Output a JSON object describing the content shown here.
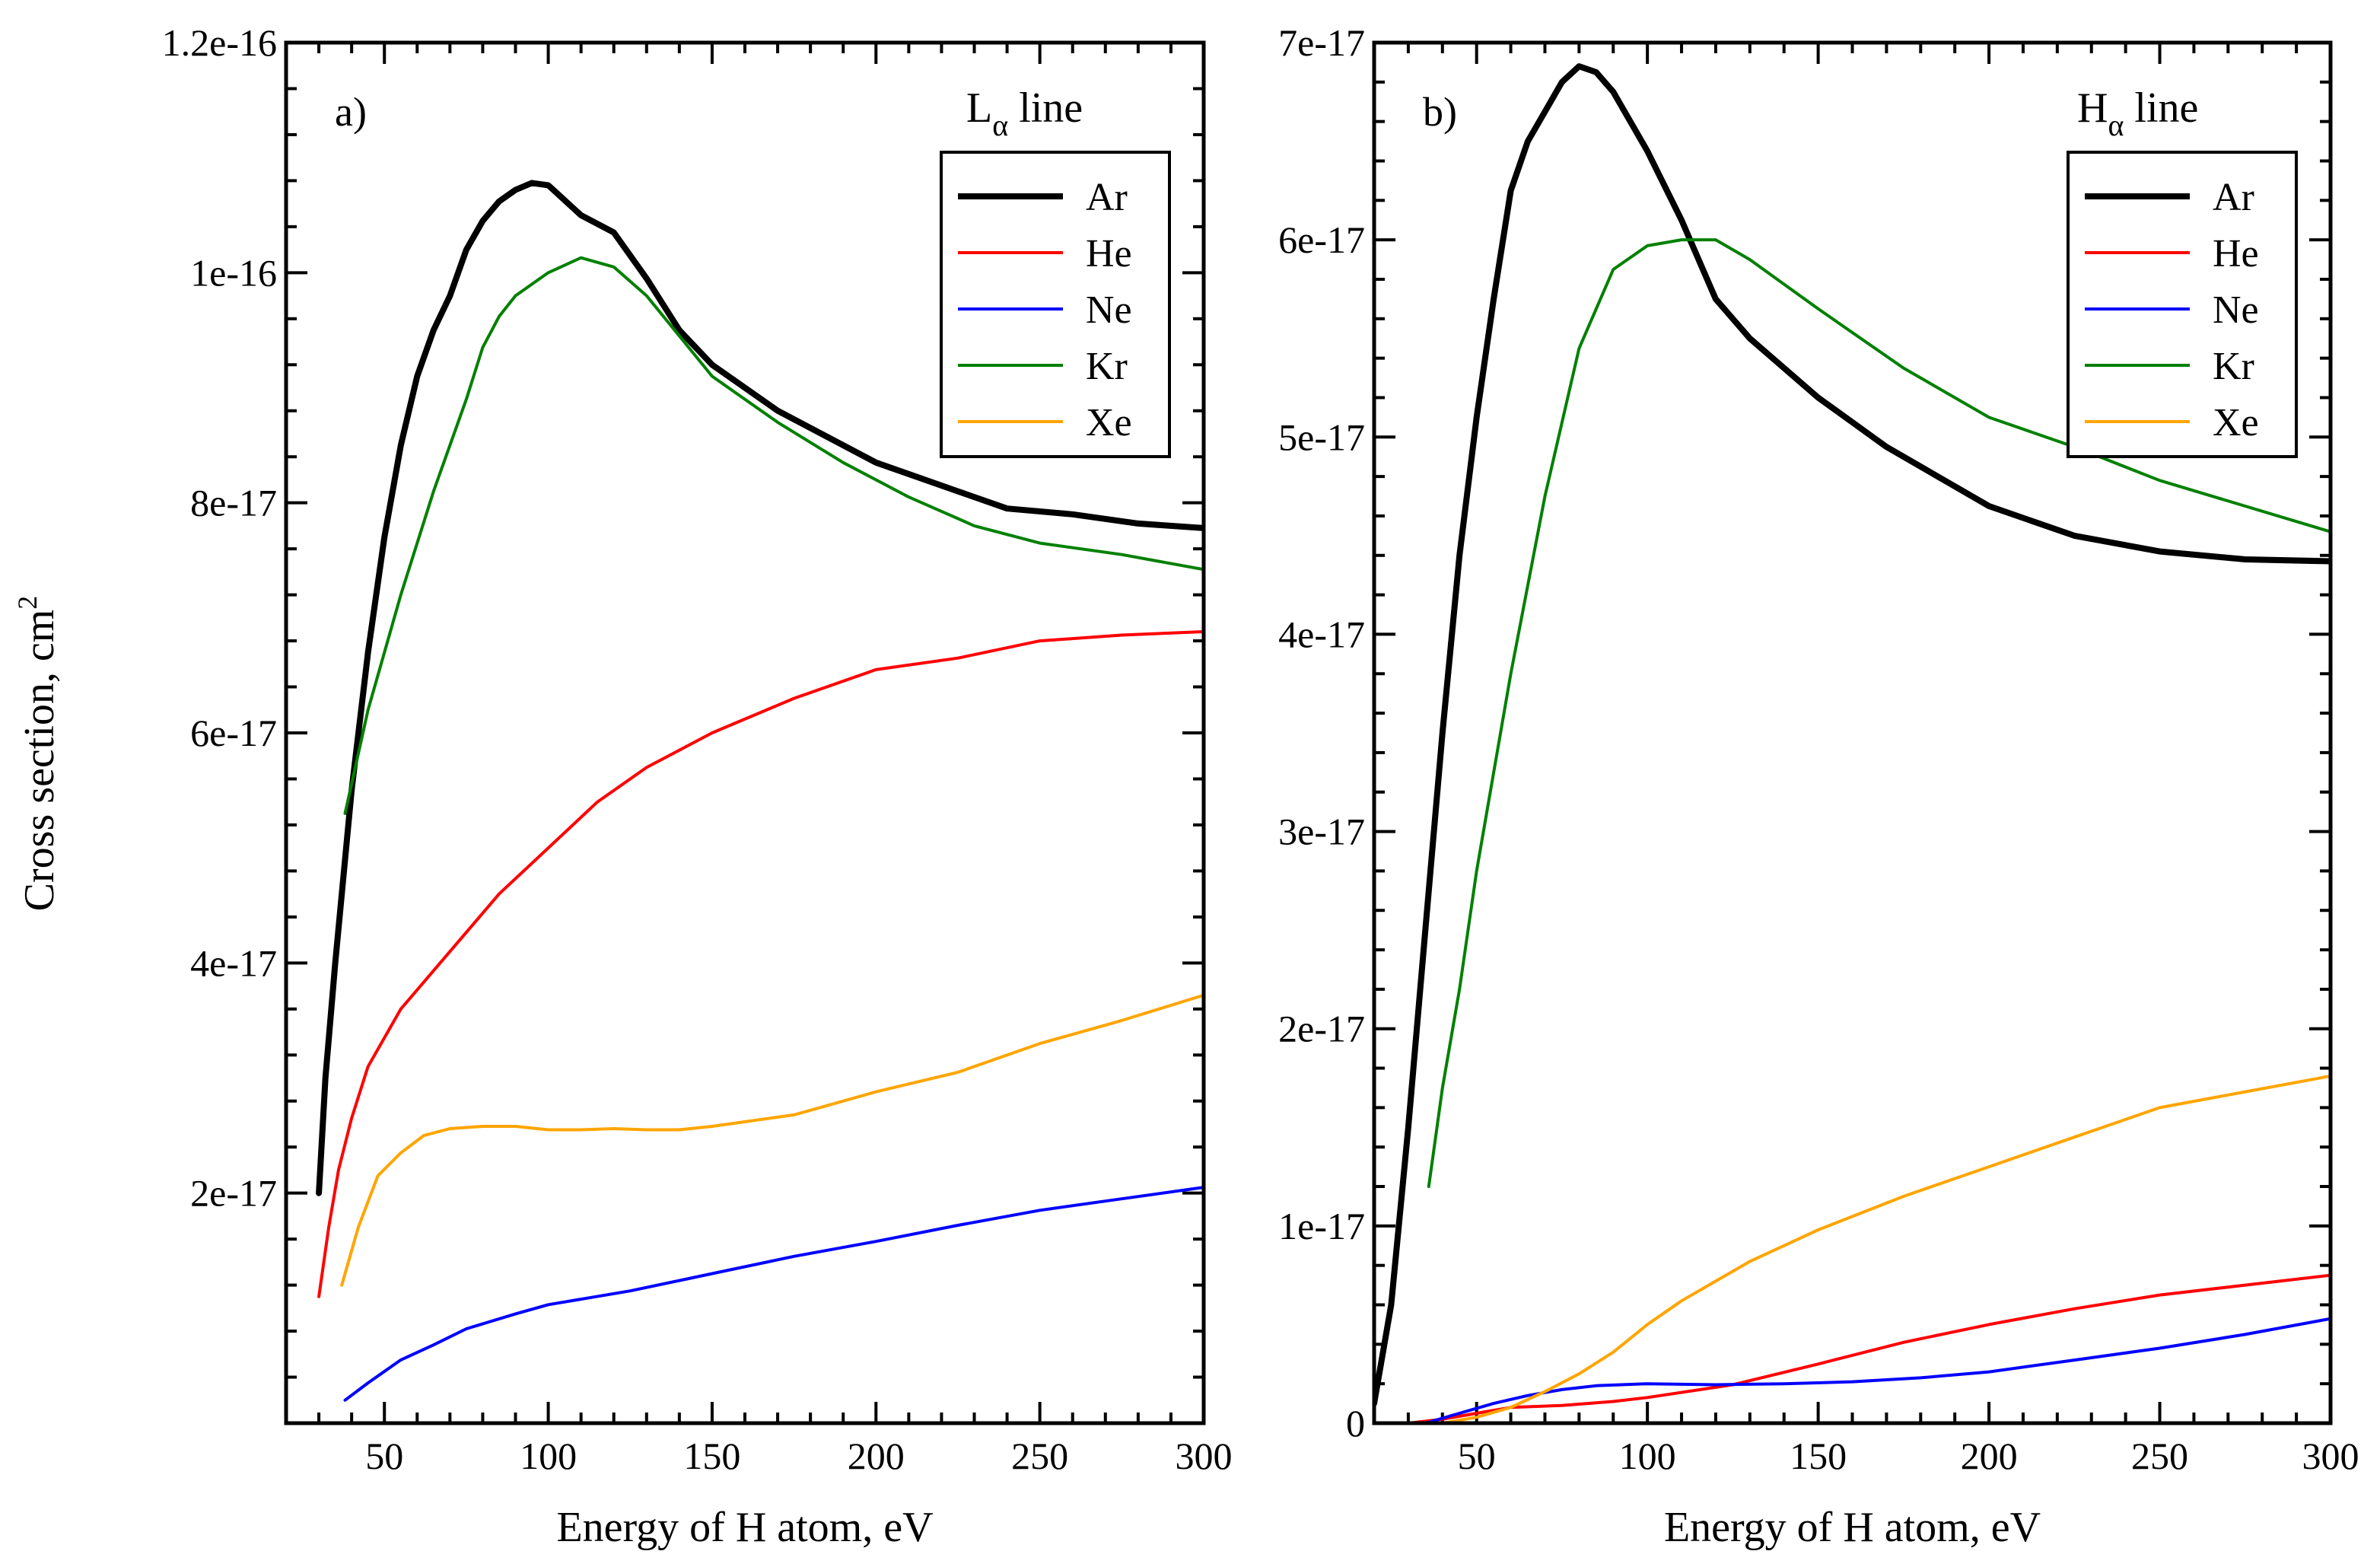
{
  "figure": {
    "ylabel": "Cross section, cm",
    "ylabel_superscript": "2",
    "xlabel": "Energy of H atom, eV"
  },
  "colors": {
    "Ar": "#000000",
    "He": "#ff0000",
    "Ne": "#0000ff",
    "Kr": "#008000",
    "Xe": "#ffa500"
  },
  "chart_data": [
    {
      "type": "line",
      "panel_label": "a)",
      "title_main": "L",
      "title_sub": "α",
      "title_suffix": " line",
      "xlabel": "Energy of H atom, eV",
      "ylabel": "Cross section, cm²",
      "xlim": [
        20,
        300
      ],
      "ylim": [
        0,
        1.2e-16
      ],
      "xticks": [
        50,
        100,
        150,
        200,
        250,
        300
      ],
      "xtick_labels": [
        "50",
        "100",
        "150",
        "200",
        "250",
        "300"
      ],
      "yticks": [
        2e-17,
        4e-17,
        6e-17,
        8e-17,
        1e-16,
        1.2e-16
      ],
      "ytick_labels": [
        "2e-17",
        "4e-17",
        "6e-17",
        "8e-17",
        "1e-16",
        "1.2e-16"
      ],
      "legend_position": "top-right",
      "series": [
        {
          "name": "Ar",
          "width": "thick",
          "points": [
            [
              30,
              2e-17
            ],
            [
              32,
              3e-17
            ],
            [
              35,
              4e-17
            ],
            [
              40,
              5.5e-17
            ],
            [
              45,
              6.7e-17
            ],
            [
              50,
              7.7e-17
            ],
            [
              55,
              8.5e-17
            ],
            [
              60,
              9.1e-17
            ],
            [
              65,
              9.5e-17
            ],
            [
              70,
              9.8e-17
            ],
            [
              75,
              1.02e-16
            ],
            [
              80,
              1.045e-16
            ],
            [
              85,
              1.062e-16
            ],
            [
              90,
              1.072e-16
            ],
            [
              95,
              1.078e-16
            ],
            [
              100,
              1.076e-16
            ],
            [
              110,
              1.05e-16
            ],
            [
              120,
              1.035e-16
            ],
            [
              130,
              9.95e-17
            ],
            [
              140,
              9.5e-17
            ],
            [
              150,
              9.2e-17
            ],
            [
              170,
              8.8e-17
            ],
            [
              200,
              8.35e-17
            ],
            [
              225,
              8.1e-17
            ],
            [
              240,
              7.95e-17
            ],
            [
              260,
              7.9e-17
            ],
            [
              280,
              7.82e-17
            ],
            [
              300,
              7.78e-17
            ]
          ]
        },
        {
          "name": "He",
          "width": "thin",
          "points": [
            [
              30,
              1.1e-17
            ],
            [
              33,
              1.7e-17
            ],
            [
              36,
              2.2e-17
            ],
            [
              40,
              2.65e-17
            ],
            [
              45,
              3.1e-17
            ],
            [
              55,
              3.6e-17
            ],
            [
              70,
              4.1e-17
            ],
            [
              85,
              4.6e-17
            ],
            [
              100,
              5e-17
            ],
            [
              115,
              5.4e-17
            ],
            [
              130,
              5.7e-17
            ],
            [
              150,
              6e-17
            ],
            [
              175,
              6.3e-17
            ],
            [
              200,
              6.55e-17
            ],
            [
              225,
              6.65e-17
            ],
            [
              250,
              6.8e-17
            ],
            [
              275,
              6.85e-17
            ],
            [
              300,
              6.88e-17
            ]
          ]
        },
        {
          "name": "Ne",
          "width": "thin",
          "points": [
            [
              38,
              2e-18
            ],
            [
              45,
              3.5e-18
            ],
            [
              55,
              5.5e-18
            ],
            [
              65,
              6.8e-18
            ],
            [
              75,
              8.2e-18
            ],
            [
              90,
              9.5e-18
            ],
            [
              100,
              1.03e-17
            ],
            [
              125,
              1.15e-17
            ],
            [
              150,
              1.3e-17
            ],
            [
              175,
              1.45e-17
            ],
            [
              200,
              1.58e-17
            ],
            [
              225,
              1.72e-17
            ],
            [
              250,
              1.85e-17
            ],
            [
              275,
              1.95e-17
            ],
            [
              300,
              2.05e-17
            ]
          ]
        },
        {
          "name": "Kr",
          "width": "thin",
          "points": [
            [
              38,
              5.3e-17
            ],
            [
              45,
              6.2e-17
            ],
            [
              55,
              7.2e-17
            ],
            [
              65,
              8.1e-17
            ],
            [
              75,
              8.9e-17
            ],
            [
              80,
              9.35e-17
            ],
            [
              85,
              9.62e-17
            ],
            [
              90,
              9.8e-17
            ],
            [
              100,
              1e-16
            ],
            [
              110,
              1.013e-16
            ],
            [
              120,
              1.005e-16
            ],
            [
              130,
              9.8e-17
            ],
            [
              140,
              9.45e-17
            ],
            [
              150,
              9.1e-17
            ],
            [
              170,
              8.7e-17
            ],
            [
              190,
              8.35e-17
            ],
            [
              210,
              8.05e-17
            ],
            [
              230,
              7.8e-17
            ],
            [
              250,
              7.65e-17
            ],
            [
              275,
              7.55e-17
            ],
            [
              300,
              7.42e-17
            ]
          ]
        },
        {
          "name": "Xe",
          "width": "thin",
          "points": [
            [
              37,
              1.2e-17
            ],
            [
              42,
              1.7e-17
            ],
            [
              48,
              2.15e-17
            ],
            [
              55,
              2.35e-17
            ],
            [
              62,
              2.5e-17
            ],
            [
              70,
              2.56e-17
            ],
            [
              80,
              2.58e-17
            ],
            [
              90,
              2.58e-17
            ],
            [
              100,
              2.55e-17
            ],
            [
              110,
              2.55e-17
            ],
            [
              120,
              2.56e-17
            ],
            [
              130,
              2.55e-17
            ],
            [
              140,
              2.55e-17
            ],
            [
              150,
              2.58e-17
            ],
            [
              175,
              2.68e-17
            ],
            [
              200,
              2.88e-17
            ],
            [
              225,
              3.05e-17
            ],
            [
              250,
              3.3e-17
            ],
            [
              275,
              3.5e-17
            ],
            [
              300,
              3.72e-17
            ]
          ]
        }
      ]
    },
    {
      "type": "line",
      "panel_label": "b)",
      "title_main": "H",
      "title_sub": "α",
      "title_suffix": " line",
      "xlabel": "Energy of H atom, eV",
      "ylabel": "",
      "xlim": [
        20,
        300
      ],
      "ylim": [
        0,
        7e-17
      ],
      "xticks": [
        50,
        100,
        150,
        200,
        250,
        300
      ],
      "xtick_labels": [
        "50",
        "100",
        "150",
        "200",
        "250",
        "300"
      ],
      "yticks": [
        0,
        1e-17,
        2e-17,
        3e-17,
        4e-17,
        5e-17,
        6e-17,
        7e-17
      ],
      "ytick_labels": [
        "0",
        "1e-17",
        "2e-17",
        "3e-17",
        "4e-17",
        "5e-17",
        "6e-17",
        "7e-17"
      ],
      "legend_position": "top-right",
      "series": [
        {
          "name": "Ar",
          "width": "thick",
          "points": [
            [
              20,
              1e-18
            ],
            [
              25,
              6e-18
            ],
            [
              30,
              1.5e-17
            ],
            [
              35,
              2.5e-17
            ],
            [
              40,
              3.5e-17
            ],
            [
              45,
              4.4e-17
            ],
            [
              50,
              5.1e-17
            ],
            [
              55,
              5.7e-17
            ],
            [
              60,
              6.25e-17
            ],
            [
              65,
              6.5e-17
            ],
            [
              70,
              6.65e-17
            ],
            [
              75,
              6.8e-17
            ],
            [
              80,
              6.88e-17
            ],
            [
              85,
              6.85e-17
            ],
            [
              90,
              6.75e-17
            ],
            [
              100,
              6.45e-17
            ],
            [
              110,
              6.1e-17
            ],
            [
              120,
              5.7e-17
            ],
            [
              130,
              5.5e-17
            ],
            [
              150,
              5.2e-17
            ],
            [
              170,
              4.95e-17
            ],
            [
              200,
              4.65e-17
            ],
            [
              225,
              4.5e-17
            ],
            [
              250,
              4.42e-17
            ],
            [
              275,
              4.38e-17
            ],
            [
              300,
              4.37e-17
            ]
          ]
        },
        {
          "name": "He",
          "width": "thin",
          "points": [
            [
              30,
              0
            ],
            [
              40,
              2e-19
            ],
            [
              50,
              5e-19
            ],
            [
              60,
              8e-19
            ],
            [
              75,
              9e-19
            ],
            [
              90,
              1.1e-18
            ],
            [
              100,
              1.3e-18
            ],
            [
              125,
              1.95e-18
            ],
            [
              150,
              3e-18
            ],
            [
              175,
              4.1e-18
            ],
            [
              200,
              5e-18
            ],
            [
              225,
              5.8e-18
            ],
            [
              250,
              6.5e-18
            ],
            [
              275,
              7e-18
            ],
            [
              300,
              7.5e-18
            ]
          ]
        },
        {
          "name": "Ne",
          "width": "thin",
          "points": [
            [
              35,
              0
            ],
            [
              45,
              5e-19
            ],
            [
              55,
              1e-18
            ],
            [
              65,
              1.4e-18
            ],
            [
              75,
              1.7e-18
            ],
            [
              85,
              1.9e-18
            ],
            [
              100,
              2e-18
            ],
            [
              120,
              1.95e-18
            ],
            [
              140,
              2e-18
            ],
            [
              160,
              2.1e-18
            ],
            [
              180,
              2.3e-18
            ],
            [
              200,
              2.6e-18
            ],
            [
              225,
              3.2e-18
            ],
            [
              250,
              3.8e-18
            ],
            [
              275,
              4.5e-18
            ],
            [
              300,
              5.3e-18
            ]
          ]
        },
        {
          "name": "Kr",
          "width": "thin",
          "points": [
            [
              36,
              1.2e-17
            ],
            [
              40,
              1.7e-17
            ],
            [
              45,
              2.2e-17
            ],
            [
              50,
              2.8e-17
            ],
            [
              60,
              3.8e-17
            ],
            [
              70,
              4.7e-17
            ],
            [
              80,
              5.45e-17
            ],
            [
              90,
              5.85e-17
            ],
            [
              100,
              5.97e-17
            ],
            [
              110,
              6e-17
            ],
            [
              120,
              6e-17
            ],
            [
              130,
              5.9e-17
            ],
            [
              150,
              5.65e-17
            ],
            [
              175,
              5.35e-17
            ],
            [
              200,
              5.1e-17
            ],
            [
              225,
              4.95e-17
            ],
            [
              250,
              4.78e-17
            ],
            [
              275,
              4.65e-17
            ],
            [
              300,
              4.52e-17
            ]
          ]
        },
        {
          "name": "Xe",
          "width": "thin",
          "points": [
            [
              40,
              0
            ],
            [
              50,
              3e-19
            ],
            [
              60,
              8e-19
            ],
            [
              70,
              1.6e-18
            ],
            [
              80,
              2.5e-18
            ],
            [
              90,
              3.6e-18
            ],
            [
              100,
              5e-18
            ],
            [
              110,
              6.2e-18
            ],
            [
              120,
              7.2e-18
            ],
            [
              130,
              8.2e-18
            ],
            [
              140,
              9e-18
            ],
            [
              150,
              9.8e-18
            ],
            [
              175,
              1.15e-17
            ],
            [
              200,
              1.3e-17
            ],
            [
              225,
              1.45e-17
            ],
            [
              250,
              1.6e-17
            ],
            [
              275,
              1.68e-17
            ],
            [
              300,
              1.76e-17
            ]
          ]
        }
      ]
    }
  ]
}
